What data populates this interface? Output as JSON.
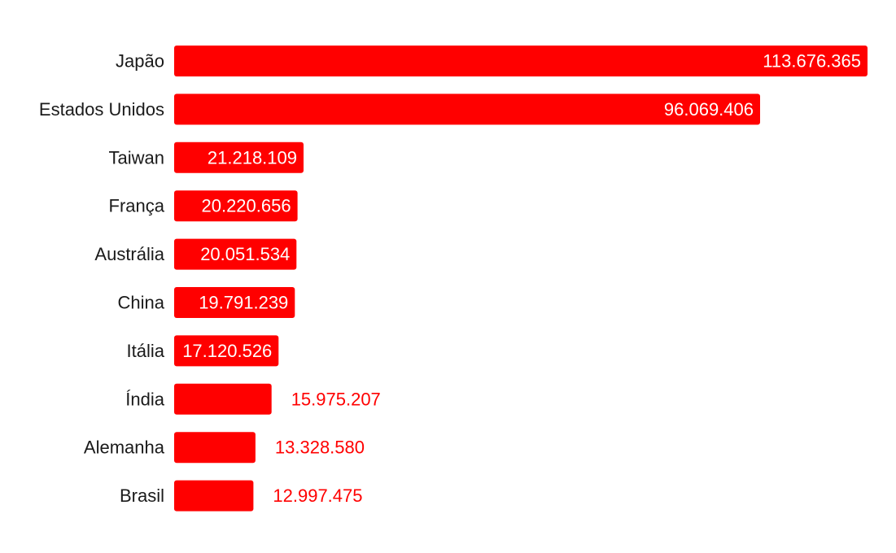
{
  "chart_data": {
    "type": "bar",
    "orientation": "horizontal",
    "categories": [
      "Japão",
      "Estados Unidos",
      "Taiwan",
      "França",
      "Austrália",
      "China",
      "Itália",
      "Índia",
      "Alemanha",
      "Brasil"
    ],
    "values": [
      113676365,
      96069406,
      21218109,
      20220656,
      20051534,
      19791239,
      17120526,
      15975207,
      13328580,
      12997475
    ],
    "value_labels": [
      "113.676.365",
      "96.069.406",
      "21.218.109",
      "20.220.656",
      "20.051.534",
      "19.791.239",
      "17.120.526",
      "15.975.207",
      "13.328.580",
      "12.997.475"
    ],
    "title": "",
    "xlabel": "",
    "ylabel": "",
    "grid": false,
    "legend": "none",
    "bar_color": "#ff0000",
    "inside_label_color": "#ffffff",
    "outside_label_color": "#ff0000",
    "category_label_color": "#1a1a1a"
  }
}
